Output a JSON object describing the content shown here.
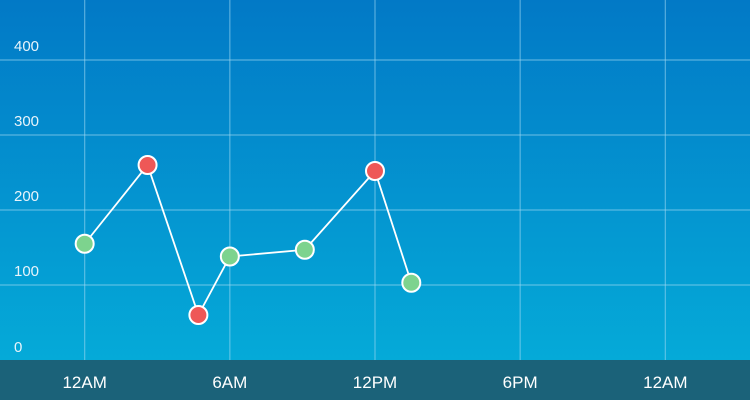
{
  "chart_data": {
    "type": "line",
    "title": "",
    "xlabel": "",
    "ylabel": "",
    "x_ticks": [
      "12AM",
      "6AM",
      "12PM",
      "6PM",
      "12AM"
    ],
    "x_tick_hours": [
      0,
      6,
      12,
      18,
      24
    ],
    "y_ticks": [
      "0",
      "100",
      "200",
      "300",
      "400"
    ],
    "y_tick_values": [
      0,
      100,
      200,
      300,
      400
    ],
    "ylim": [
      0,
      480
    ],
    "xlim_hours": [
      -3.5,
      27.5
    ],
    "grid": true,
    "series": [
      {
        "points": [
          {
            "hour": 0.0,
            "value": 155,
            "status": "normal"
          },
          {
            "hour": 2.6,
            "value": 260,
            "status": "high"
          },
          {
            "hour": 4.7,
            "value": 60,
            "status": "high"
          },
          {
            "hour": 6.0,
            "value": 138,
            "status": "normal"
          },
          {
            "hour": 9.1,
            "value": 147,
            "status": "normal"
          },
          {
            "hour": 12.0,
            "value": 252,
            "status": "high"
          },
          {
            "hour": 13.5,
            "value": 103,
            "status": "normal"
          }
        ]
      }
    ]
  },
  "colors": {
    "bg_top": "#0279c6",
    "bg_bottom": "#05aad8",
    "axis_band": "#1b6279",
    "grid": "#9fd8f3",
    "line": "#ffffff",
    "normal_point": "#7dd38e",
    "high_point": "#ee5857"
  }
}
